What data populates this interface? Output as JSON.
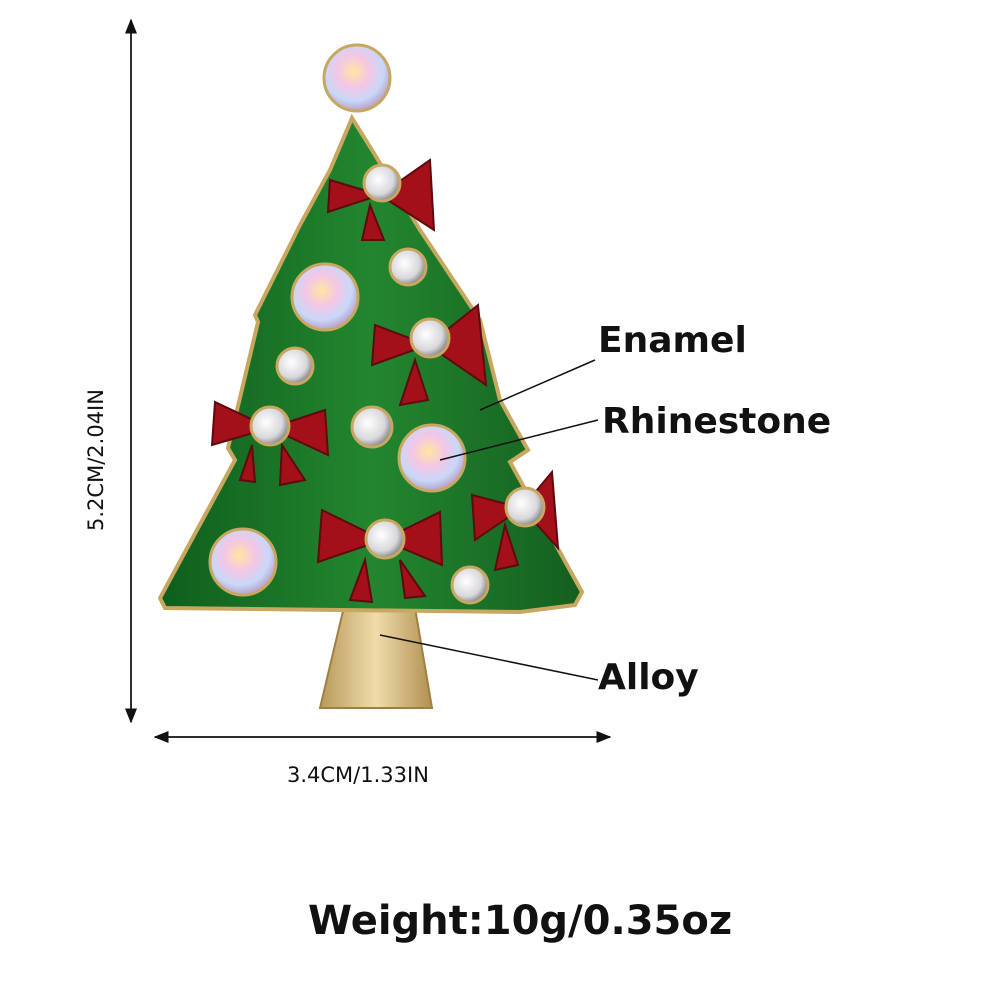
{
  "dimensions": {
    "height_label": "5.2CM/2.04IN",
    "width_label": "3.4CM/1.33IN"
  },
  "callouts": [
    {
      "label": "Enamel"
    },
    {
      "label": "Rhinestone"
    },
    {
      "label": "Alloy"
    }
  ],
  "weight_label": "Weight:10g/0.35oz",
  "product": {
    "subject": "christmas-tree-brooch"
  },
  "colors": {
    "enamel_green": "#1f7a2a",
    "bow_red": "#a3101a",
    "alloy_gold": "#d8c08a",
    "rhinestone": "#e8e8ee"
  }
}
